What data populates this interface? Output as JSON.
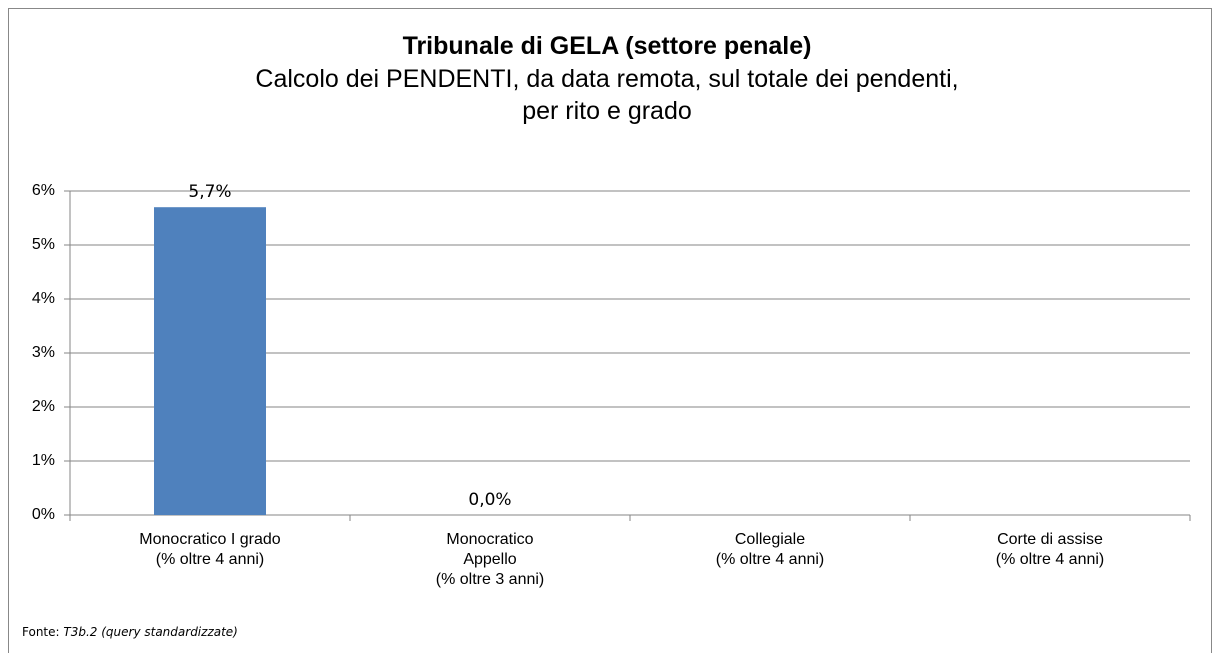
{
  "chart_data": {
    "type": "bar",
    "title": "Tribunale di GELA (settore penale)",
    "subtitle": "Calcolo dei PENDENTI, da data remota, sul totale dei pendenti,\nper rito e grado",
    "categories": [
      "Monocratico I grado\n(% oltre 4 anni)",
      "Monocratico\nAppello\n(% oltre 3 anni)",
      "Collegiale\n(% oltre 4 anni)",
      "Corte di assise\n(% oltre 4 anni)"
    ],
    "values": [
      5.7,
      0.0,
      null,
      null
    ],
    "value_labels": [
      "5,7%",
      "0,0%",
      null,
      null
    ],
    "color": "#4f81bd",
    "ylim": [
      0,
      6
    ],
    "yticks": [
      {
        "value": 0,
        "label": "0%"
      },
      {
        "value": 1,
        "label": "1%"
      },
      {
        "value": 2,
        "label": "2%"
      },
      {
        "value": 3,
        "label": "3%"
      },
      {
        "value": 4,
        "label": "4%"
      },
      {
        "value": 5,
        "label": "5%"
      },
      {
        "value": 6,
        "label": "6%"
      }
    ],
    "grid": true,
    "source": {
      "label": "Fonte:",
      "text": "T3b.2 (query standardizzate)"
    }
  }
}
